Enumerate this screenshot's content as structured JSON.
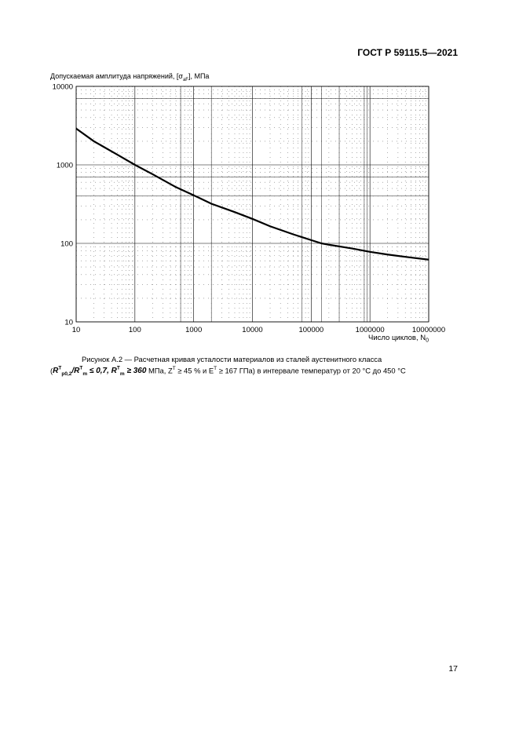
{
  "header": {
    "standard": "ГОСТ Р 59115.5—2021"
  },
  "figure": {
    "ylabel_prefix": "Допускаемая амплитуда напряжений, [σ",
    "ylabel_sub": "aF",
    "ylabel_suffix": "], МПа",
    "xlabel_prefix": "Число циклов, N",
    "xlabel_sub": "0",
    "caption_line1": "Рисунок А.2 — Расчетная кривая усталости материалов из сталей аустенитного класса",
    "caption_line2_mpa": "МПа, Z",
    "caption_line2_sup1": "T",
    "caption_line2_mid": " ≥ 45 % и E",
    "caption_line2_sup2": "T",
    "caption_line2_end": " ≥ 167 ГПа) в интервале температур от 20 °C до 450 °C",
    "formula": {
      "r1": "R",
      "r1_sup": "T",
      "r1_sub": "p0,2",
      "slash": "/",
      "r2": "R",
      "r2_sup": "T",
      "r2_sub": "m",
      "ineq1": "≤ 0,7",
      "sep": ",",
      "r3": "R",
      "r3_sup": "T",
      "r3_sub": "m",
      "ineq2": "≥ 360"
    }
  },
  "chart_data": {
    "type": "line",
    "xscale": "log",
    "yscale": "log",
    "xlim": [
      10,
      10000000
    ],
    "ylim": [
      10,
      10000
    ],
    "x_ticks": [
      "10",
      "100",
      "1000",
      "10000",
      "100000",
      "1000000",
      "10000000"
    ],
    "y_ticks": [
      "10",
      "100",
      "1000",
      "10000"
    ],
    "xlabel": "Число циклов, N0",
    "ylabel": "Допускаемая амплитуда напряжений, [σaF], МПа",
    "grid": true,
    "series": [
      {
        "x": [
          10,
          20,
          50,
          100,
          200,
          500,
          1000,
          2000,
          5000,
          10000,
          20000,
          50000,
          100000,
          150000,
          200000,
          500000,
          1000000,
          2000000,
          5000000,
          10000000
        ],
        "y": [
          2900,
          2000,
          1350,
          1000,
          760,
          520,
          410,
          320,
          250,
          205,
          165,
          130,
          110,
          100,
          96,
          86,
          78,
          72,
          66,
          62
        ]
      }
    ]
  },
  "page_number": "17"
}
